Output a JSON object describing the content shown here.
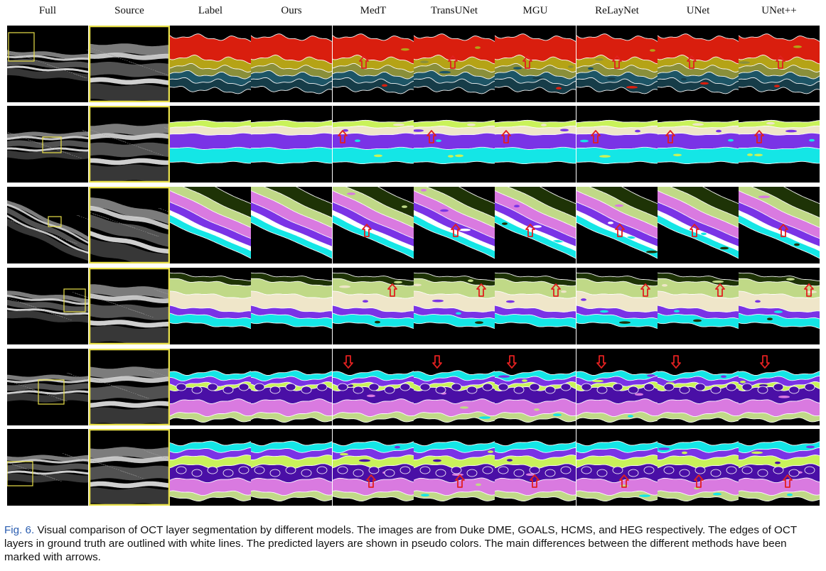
{
  "figure": {
    "columns": [
      "Full",
      "Source",
      "Label",
      "Ours",
      "MedT",
      "TransUNet",
      "MGU",
      "ReLayNet",
      "UNet",
      "UNet++"
    ],
    "rows": 6,
    "caption_label": "Fig. 6.",
    "caption_text": "Visual comparison of OCT layer segmentation by different models. The images are from Duke DME, GOALS, HCMS, and HEG respectively. The edges of OCT layers in ground truth are outlined with white lines. The predicted layers are shown in pseudo colors. The main differences between the different methods have been marked with arrows."
  },
  "colors": {
    "background": "#000000",
    "outline": "#ffffff",
    "highlight_box": "#e8e04a",
    "arrow": "#e02020",
    "caption_label": "#2a5db0",
    "duke": [
      "#d91e0e",
      "#b5a316",
      "#8a8f3a",
      "#1d5566",
      "#163c48"
    ],
    "goals": [
      "#c9f25a",
      "#efe6c9",
      "#7a33e6",
      "#14e6e6"
    ],
    "hcms": [
      "#1e3306",
      "#c0d987",
      "#d97ae0",
      "#7a33e6",
      "#ffffff",
      "#14e6e6"
    ],
    "heg": [
      "#1e3306",
      "#c0d987",
      "#efe6c9",
      "#7a33e6",
      "#14e6e6"
    ],
    "edema": [
      "#14e6e6",
      "#7a33e6",
      "#c9f25a",
      "#4a0fa6",
      "#d97ae0",
      "#c0d987"
    ]
  }
}
